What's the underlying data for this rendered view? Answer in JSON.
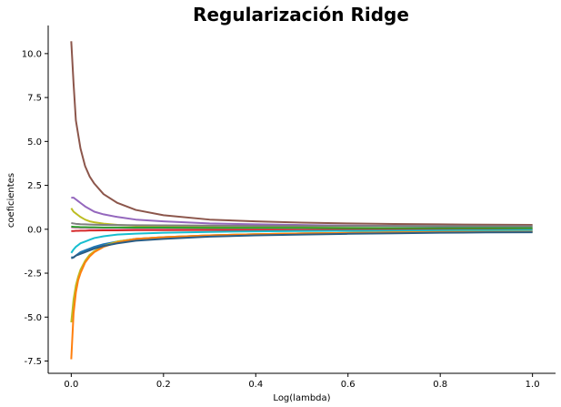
{
  "chart_data": {
    "type": "line",
    "title": "Regularización Ridge",
    "xlabel": "Log(lambda)",
    "ylabel": "coeficientes",
    "xlim": [
      -0.05,
      1.05
    ],
    "ylim": [
      -8.2,
      11.6
    ],
    "xticks": [
      0.0,
      0.2,
      0.4,
      0.6,
      0.8,
      1.0
    ],
    "xtick_labels": [
      "0.0",
      "0.2",
      "0.4",
      "0.6",
      "0.8",
      "1.0"
    ],
    "yticks": [
      -7.5,
      -5.0,
      -2.5,
      0.0,
      2.5,
      5.0,
      7.5,
      10.0
    ],
    "ytick_labels": [
      "-7.5",
      "-5.0",
      "-2.5",
      "0.0",
      "2.5",
      "5.0",
      "7.5",
      "10.0"
    ],
    "grid": false,
    "legend": "none",
    "x": [
      0.0,
      0.005,
      0.01,
      0.015,
      0.02,
      0.03,
      0.04,
      0.05,
      0.07,
      0.1,
      0.14,
      0.2,
      0.3,
      0.4,
      0.5,
      0.6,
      0.7,
      0.8,
      0.9,
      1.0
    ],
    "series": [
      {
        "color": "#8c564b",
        "values": [
          10.7,
          8.3,
          6.2,
          5.4,
          4.6,
          3.6,
          3.0,
          2.6,
          2.0,
          1.5,
          1.1,
          0.8,
          0.55,
          0.45,
          0.38,
          0.33,
          0.3,
          0.28,
          0.26,
          0.25
        ]
      },
      {
        "color": "#9467bd",
        "values": [
          1.8,
          1.8,
          1.7,
          1.6,
          1.5,
          1.3,
          1.15,
          1.0,
          0.85,
          0.7,
          0.55,
          0.45,
          0.33,
          0.28,
          0.24,
          0.21,
          0.19,
          0.17,
          0.16,
          0.15
        ]
      },
      {
        "color": "#bcbd22",
        "values": [
          1.2,
          1.0,
          0.9,
          0.8,
          0.7,
          0.55,
          0.45,
          0.4,
          0.32,
          0.25,
          0.2,
          0.16,
          0.12,
          0.1,
          0.09,
          0.08,
          0.07,
          0.06,
          0.06,
          0.05
        ]
      },
      {
        "color": "#7f7f7f",
        "values": [
          0.35,
          0.33,
          0.31,
          0.3,
          0.29,
          0.28,
          0.27,
          0.26,
          0.25,
          0.24,
          0.23,
          0.22,
          0.21,
          0.2,
          0.2,
          0.19,
          0.19,
          0.19,
          0.18,
          0.18
        ]
      },
      {
        "color": "#e377c2",
        "values": [
          0.1,
          0.1,
          0.09,
          0.09,
          0.08,
          0.08,
          0.07,
          0.07,
          0.06,
          0.06,
          0.05,
          0.05,
          0.04,
          0.04,
          0.04,
          0.03,
          0.03,
          0.03,
          0.03,
          0.03
        ]
      },
      {
        "color": "#d62728",
        "values": [
          -0.1,
          -0.1,
          -0.09,
          -0.09,
          -0.08,
          -0.08,
          -0.07,
          -0.07,
          -0.06,
          -0.06,
          -0.05,
          -0.05,
          -0.04,
          -0.04,
          -0.04,
          -0.03,
          -0.03,
          -0.03,
          -0.03,
          -0.03
        ]
      },
      {
        "color": "#2ca02c",
        "values": [
          0.15,
          0.14,
          0.13,
          0.13,
          0.12,
          0.12,
          0.11,
          0.11,
          0.1,
          0.1,
          0.09,
          0.09,
          0.08,
          0.08,
          0.08,
          0.07,
          0.07,
          0.07,
          0.07,
          0.07
        ]
      },
      {
        "color": "#17becf",
        "values": [
          -1.35,
          -1.15,
          -1.0,
          -0.9,
          -0.8,
          -0.7,
          -0.6,
          -0.5,
          -0.4,
          -0.3,
          -0.25,
          -0.2,
          -0.15,
          -0.12,
          -0.1,
          -0.09,
          -0.08,
          -0.07,
          -0.06,
          -0.05
        ]
      },
      {
        "color": "#1f77b4",
        "values": [
          -1.6,
          -1.6,
          -1.5,
          -1.4,
          -1.3,
          -1.2,
          -1.1,
          -1.0,
          -0.85,
          -0.7,
          -0.55,
          -0.45,
          -0.35,
          -0.28,
          -0.24,
          -0.21,
          -0.18,
          -0.16,
          -0.15,
          -0.14
        ]
      },
      {
        "color": "#bcbd22",
        "values": [
          -5.3,
          -4.0,
          -3.2,
          -2.7,
          -2.3,
          -1.8,
          -1.45,
          -1.25,
          -0.95,
          -0.7,
          -0.55,
          -0.45,
          -0.35,
          -0.28,
          -0.24,
          -0.21,
          -0.18,
          -0.16,
          -0.15,
          -0.14
        ]
      },
      {
        "color": "#ff7f0e",
        "values": [
          -7.4,
          -4.8,
          -3.6,
          -2.9,
          -2.5,
          -1.9,
          -1.55,
          -1.3,
          -1.0,
          -0.75,
          -0.55,
          -0.45,
          -0.35,
          -0.28,
          -0.24,
          -0.21,
          -0.18,
          -0.16,
          -0.15,
          -0.14
        ]
      },
      {
        "color": "#2a5d85",
        "values": [
          -1.65,
          -1.6,
          -1.5,
          -1.45,
          -1.4,
          -1.3,
          -1.2,
          -1.1,
          -0.95,
          -0.8,
          -0.65,
          -0.55,
          -0.42,
          -0.35,
          -0.3,
          -0.26,
          -0.23,
          -0.2,
          -0.18,
          -0.17
        ]
      }
    ]
  }
}
